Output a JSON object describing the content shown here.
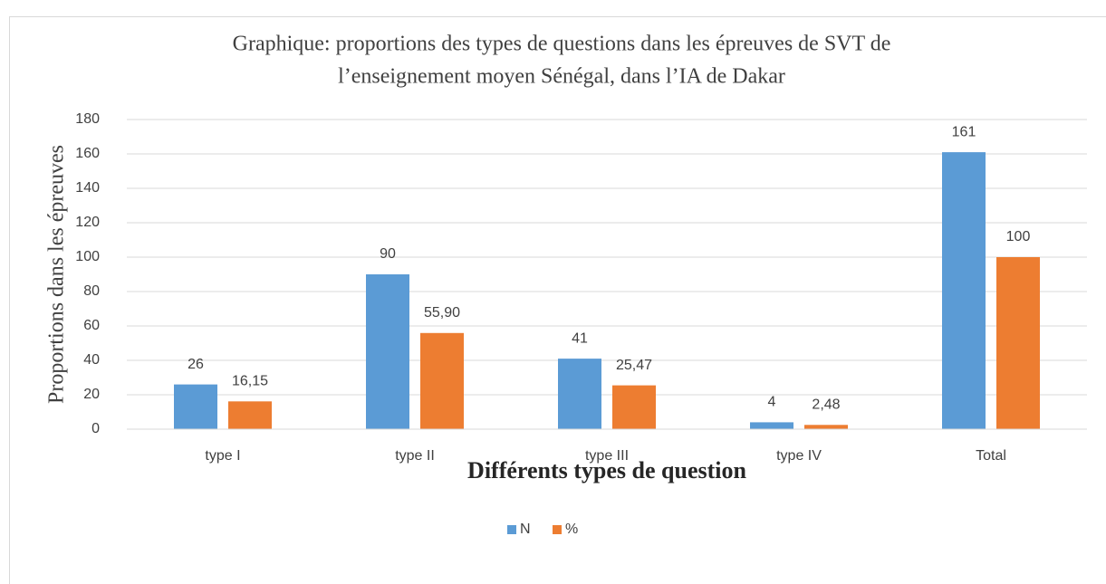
{
  "chart_data": {
    "type": "bar",
    "title": [
      "Graphique: proportions des types de questions dans les épreuves de SVT de",
      "l’enseignement moyen Sénégal, dans l’IA de Dakar"
    ],
    "y_label": "Proportions dans les épreuves",
    "x_label": "Différents types de question",
    "categories": [
      "type I",
      "type II",
      "type III",
      "type IV",
      "Total"
    ],
    "series": [
      {
        "name": "N",
        "color": "#5b9bd5",
        "values": [
          26,
          90,
          41,
          4,
          161
        ]
      },
      {
        "name": "%",
        "color": "#ed7d31",
        "values": [
          16.15,
          55.9,
          25.47,
          2.48,
          100
        ],
        "value_labels": [
          "16,15",
          "55,90",
          "25,47",
          "2,48",
          "100"
        ]
      }
    ],
    "ylim": [
      0,
      180
    ],
    "yticks": [
      0,
      20,
      40,
      60,
      80,
      100,
      120,
      140,
      160,
      180
    ],
    "grid": true,
    "legend": "bottom"
  }
}
